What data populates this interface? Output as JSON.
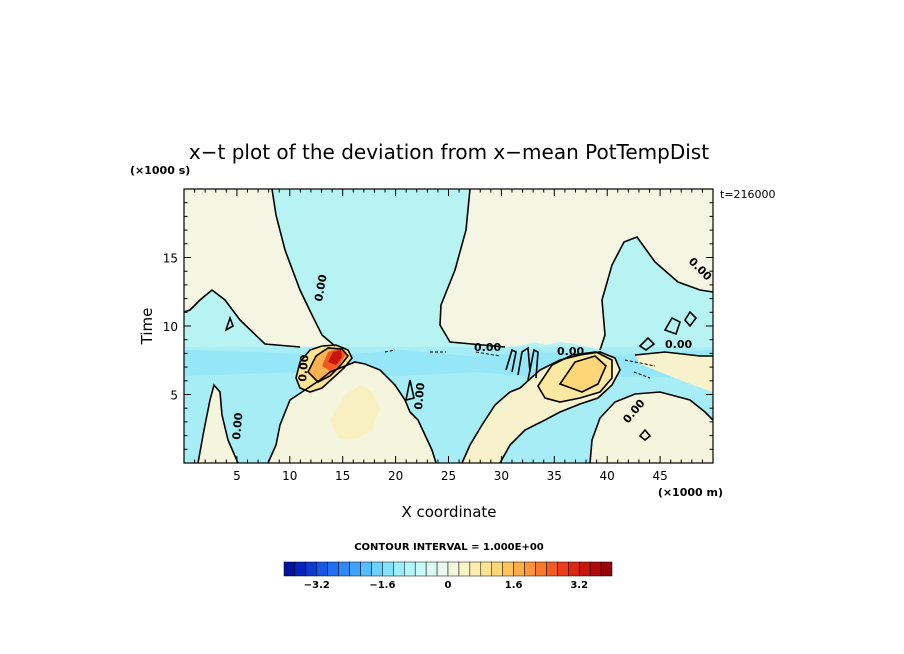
{
  "chart_data": {
    "type": "heatmap",
    "title": "x−t plot of the deviation from x−mean PotTempDist",
    "xlabel": "X coordinate",
    "ylabel": "Time",
    "x_unit": "(×1000 m)",
    "y_unit": "(×1000 s)",
    "time_stamp": "t=216000",
    "xlim": [
      0,
      50
    ],
    "ylim": [
      0,
      20
    ],
    "x_ticks": [
      5,
      10,
      15,
      20,
      25,
      30,
      35,
      40,
      45
    ],
    "y_ticks": [
      5,
      10,
      15
    ],
    "contour_interval_text": "CONTOUR INTERVAL = 1.000E+00",
    "contour_label": "0.00",
    "colorbar": {
      "min": -4,
      "max": 4,
      "tick_values": [
        -3.2,
        -1.6,
        0,
        1.6,
        3.2
      ],
      "tick_labels": [
        "−3.2",
        "−1.6",
        "0",
        "1.6",
        "3.2"
      ],
      "colors": [
        "#00139c",
        "#0723b8",
        "#0e3ad0",
        "#1656e4",
        "#2171f2",
        "#2f8af7",
        "#41a3fb",
        "#55bcfd",
        "#6bd2fd",
        "#84e2fc",
        "#9ceef9",
        "#b3f6f6",
        "#c8faf5",
        "#daf9f2",
        "#e8f8ec",
        "#f2f7dc",
        "#f7f4c8",
        "#fbeeae",
        "#fde492",
        "#fdd677",
        "#fcc35f",
        "#fbad4b",
        "#f9943b",
        "#f6792e",
        "#f15c23",
        "#e83f1a",
        "#db2814",
        "#c8160f",
        "#b00a0c",
        "#940609"
      ]
    },
    "regions": [
      {
        "name": "upper-left-warm",
        "value": 0.3
      },
      {
        "name": "upper-center-cool",
        "value": -0.3
      },
      {
        "name": "upper-right-warm",
        "value": 0.3
      },
      {
        "name": "lower-band-cool",
        "value": -0.8
      },
      {
        "name": "warm-peak-x14",
        "value": 3.6
      },
      {
        "name": "warm-bulge-x38",
        "value": 2.0
      },
      {
        "name": "lower-warm-x20",
        "value": 0.5
      }
    ]
  }
}
